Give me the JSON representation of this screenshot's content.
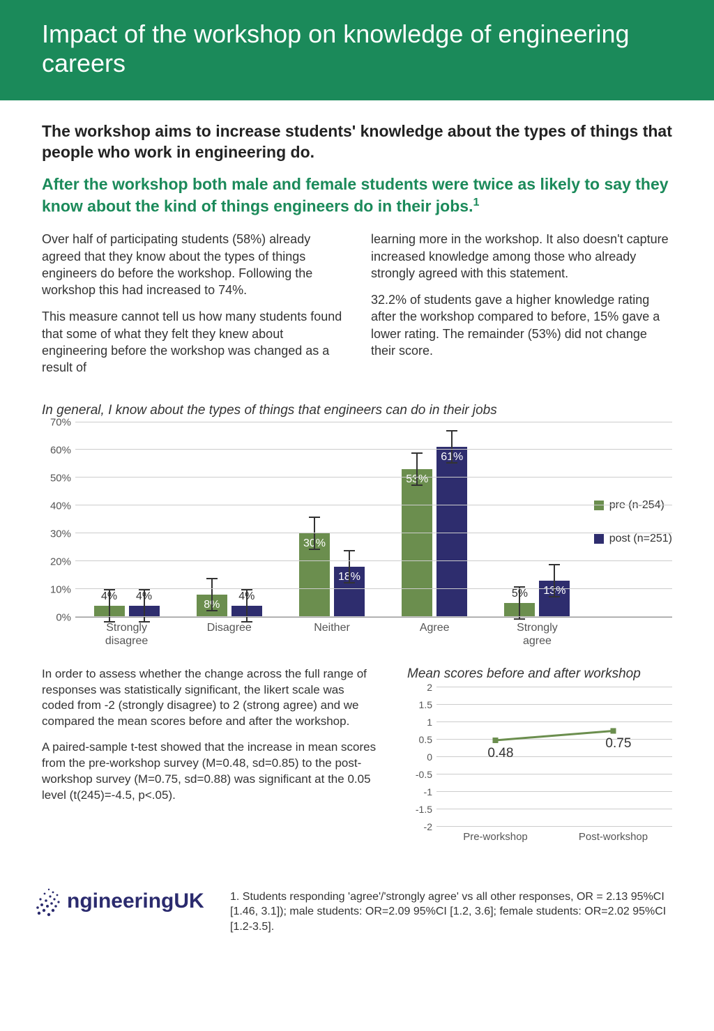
{
  "banner": "Impact of the workshop on knowledge of engineering careers",
  "lead": "The workshop aims to increase students' knowledge about the types of things that people who work in engineering do.",
  "highlight": "After the workshop both male and female students were twice as likely to say they know about the kind of things engineers do in their jobs.",
  "highlight_sup": "1",
  "body": {
    "left": [
      "Over half of participating students (58%) already agreed that they know about the types of things engineers do before the workshop. Following the workshop this had increased to 74%.",
      "This measure cannot tell us how many students found that some of what they felt they knew about engineering before the workshop was changed as a result of"
    ],
    "right": [
      "learning more in the workshop. It also doesn't capture increased knowledge among those who already strongly agreed with this statement.",
      "32.2% of students gave a higher knowledge rating after the workshop compared to before, 15% gave a lower rating. The remainder (53%) did not change their score."
    ]
  },
  "bar_chart": {
    "title": "In general, I know about the types of things that engineers can do in their jobs",
    "y_max": 70,
    "y_ticks": [
      0,
      10,
      20,
      30,
      40,
      50,
      60,
      70
    ],
    "y_tick_labels": [
      "0%",
      "10%",
      "20%",
      "30%",
      "40%",
      "50%",
      "60%",
      "70%"
    ],
    "categories": [
      "Strongly disagree",
      "Disagree",
      "Neither",
      "Agree",
      "Strongly agree"
    ],
    "pre": [
      4,
      8,
      30,
      53,
      5
    ],
    "post": [
      4,
      4,
      18,
      61,
      13
    ],
    "pre_labels": [
      "4%",
      "8%",
      "30%",
      "53%",
      "5%"
    ],
    "post_labels": [
      "4%",
      "4%",
      "18%",
      "61%",
      "13%"
    ],
    "pre_color": "#6b8e4e",
    "post_color": "#2e2d6e",
    "legend_pre": "pre (n-254)",
    "legend_post": "post (n=251)",
    "err_half": 6
  },
  "lower_text": [
    "In order to assess whether the change across the full range of responses was statistically significant, the likert scale was coded from -2 (strongly disagree) to 2 (strong agree) and we compared the mean scores before and after the workshop.",
    "A paired-sample t-test showed that the increase in mean scores from the pre-workshop survey (M=0.48, sd=0.85) to the post-workshop survey (M=0.75, sd=0.88) was significant at the 0.05 level (t(245)=-4.5, p<.05)."
  ],
  "line_chart": {
    "title": "Mean scores before and after workshop",
    "y_min": -2,
    "y_max": 2,
    "y_ticks": [
      -2,
      -1.5,
      -1,
      -0.5,
      0,
      0.5,
      1,
      1.5,
      2
    ],
    "points": [
      {
        "x_label": "Pre-workshop",
        "value": 0.48,
        "label": "0.48"
      },
      {
        "x_label": "Post-workshop",
        "value": 0.75,
        "label": "0.75"
      }
    ],
    "line_color": "#6b8e4e"
  },
  "logo_text": "ngineeringUK",
  "footnote": "1. Students responding 'agree'/'strongly agree' vs all other responses, OR = 2.13 95%CI [1.46, 3.1]); male students: OR=2.09 95%CI [1.2, 3.6]; female students: OR=2.02 95%CI  [1.2-3.5]."
}
